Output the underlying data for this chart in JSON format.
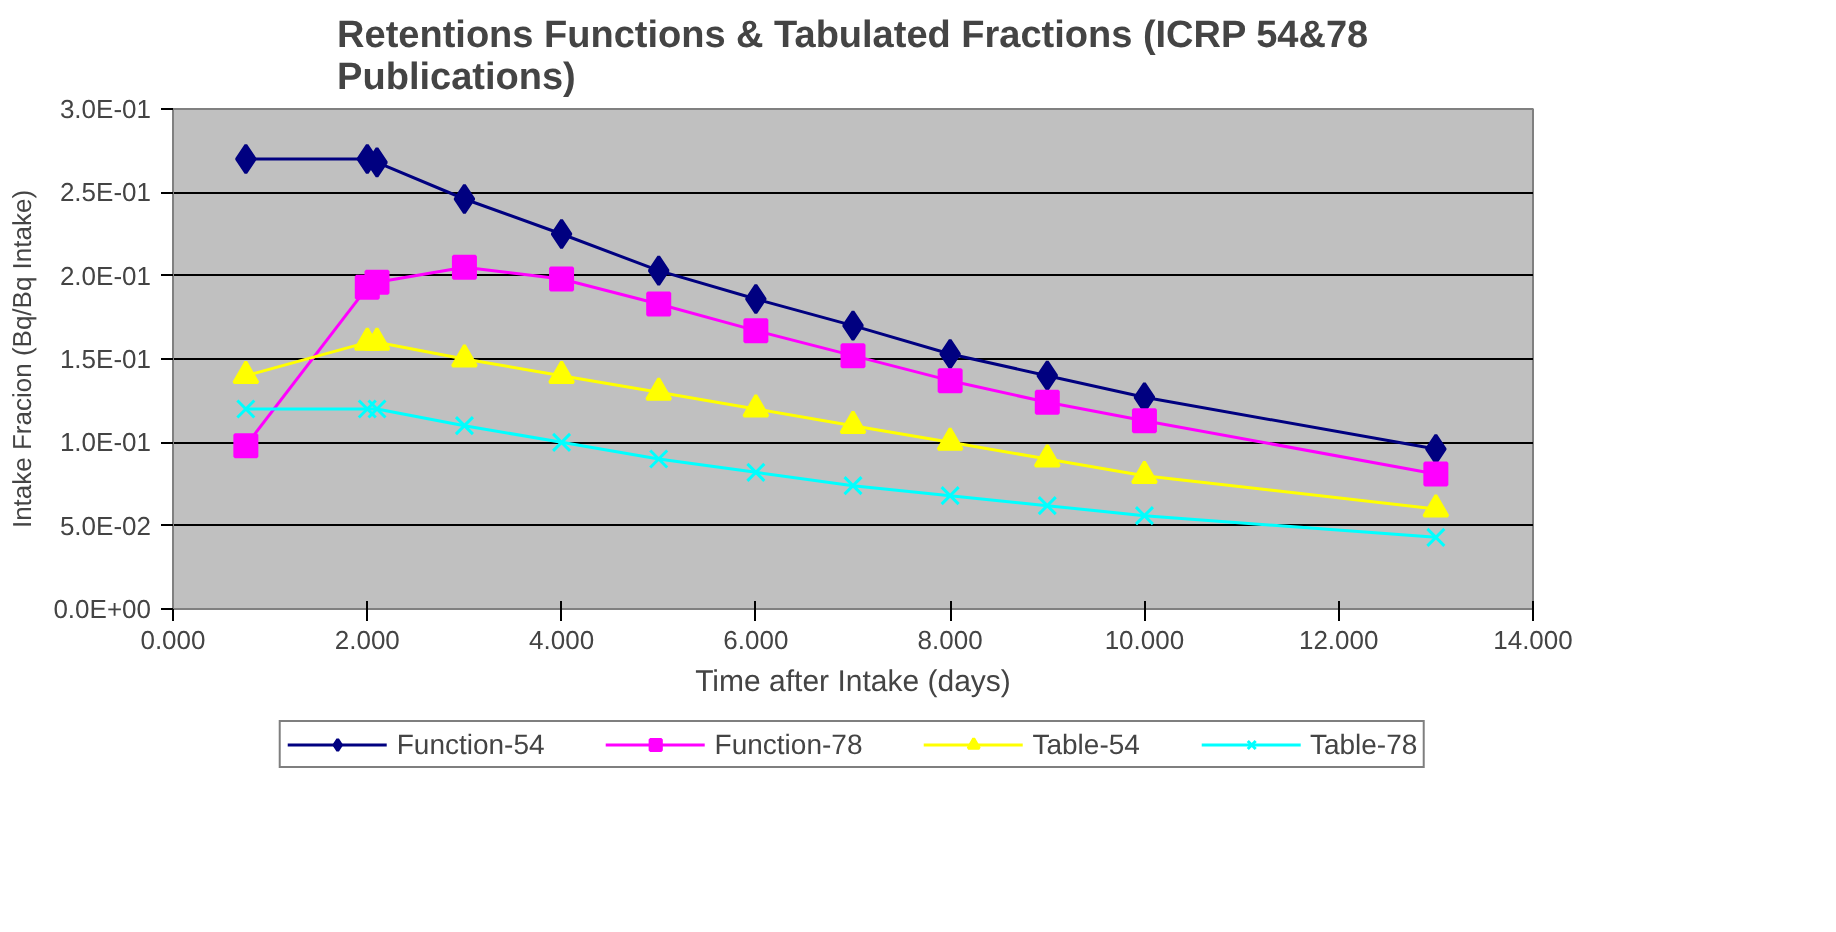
{
  "chart_data": {
    "type": "line",
    "title": "Retentions Functions & Tabulated Fractions (ICRP 54&78\nPublications)",
    "xlabel": "Time after Intake (days)",
    "ylabel": "Intake Fracion (Bq/Bq Intake)",
    "x": [
      0.75,
      2,
      2.1,
      3,
      4,
      5,
      6,
      7,
      8,
      9,
      10,
      13
    ],
    "series": [
      {
        "name": "Function-54",
        "color": "#000080",
        "marker": "diamond",
        "values": [
          0.27,
          0.27,
          0.268,
          0.246,
          0.225,
          0.203,
          0.186,
          0.17,
          0.153,
          0.14,
          0.127,
          0.096
        ]
      },
      {
        "name": "Function-78",
        "color": "#ff00ff",
        "marker": "square",
        "values": [
          0.098,
          0.193,
          0.196,
          0.205,
          0.198,
          0.183,
          0.167,
          0.152,
          0.137,
          0.124,
          0.113,
          0.081
        ]
      },
      {
        "name": "Table-54",
        "color": "#ffff00",
        "marker": "triangle",
        "values": [
          0.14,
          0.16,
          0.16,
          0.15,
          0.14,
          0.13,
          0.12,
          0.11,
          0.1,
          0.09,
          0.08,
          0.06
        ]
      },
      {
        "name": "Table-78",
        "color": "#00ffff",
        "marker": "cross",
        "values": [
          0.12,
          0.12,
          0.12,
          0.11,
          0.1,
          0.09,
          0.082,
          0.074,
          0.068,
          0.062,
          0.056,
          0.043
        ]
      }
    ],
    "xlim": [
      0,
      14
    ],
    "ylim": [
      0,
      0.3
    ],
    "xticks": [
      {
        "value": 0,
        "label": "0.000"
      },
      {
        "value": 2,
        "label": "2.000"
      },
      {
        "value": 4,
        "label": "4.000"
      },
      {
        "value": 6,
        "label": "6.000"
      },
      {
        "value": 8,
        "label": "8.000"
      },
      {
        "value": 10,
        "label": "10.000"
      },
      {
        "value": 12,
        "label": "12.000"
      },
      {
        "value": 14,
        "label": "14.000"
      }
    ],
    "yticks": [
      {
        "value": 0,
        "label": "0.0E+00"
      },
      {
        "value": 0.05,
        "label": "5.0E-02"
      },
      {
        "value": 0.1,
        "label": "1.0E-01"
      },
      {
        "value": 0.15,
        "label": "1.5E-01"
      },
      {
        "value": 0.2,
        "label": "2.0E-01"
      },
      {
        "value": 0.25,
        "label": "2.5E-01"
      },
      {
        "value": 0.3,
        "label": "3.0E-01"
      }
    ],
    "grid": "y",
    "legend": "bottom",
    "line_style": "solid"
  }
}
